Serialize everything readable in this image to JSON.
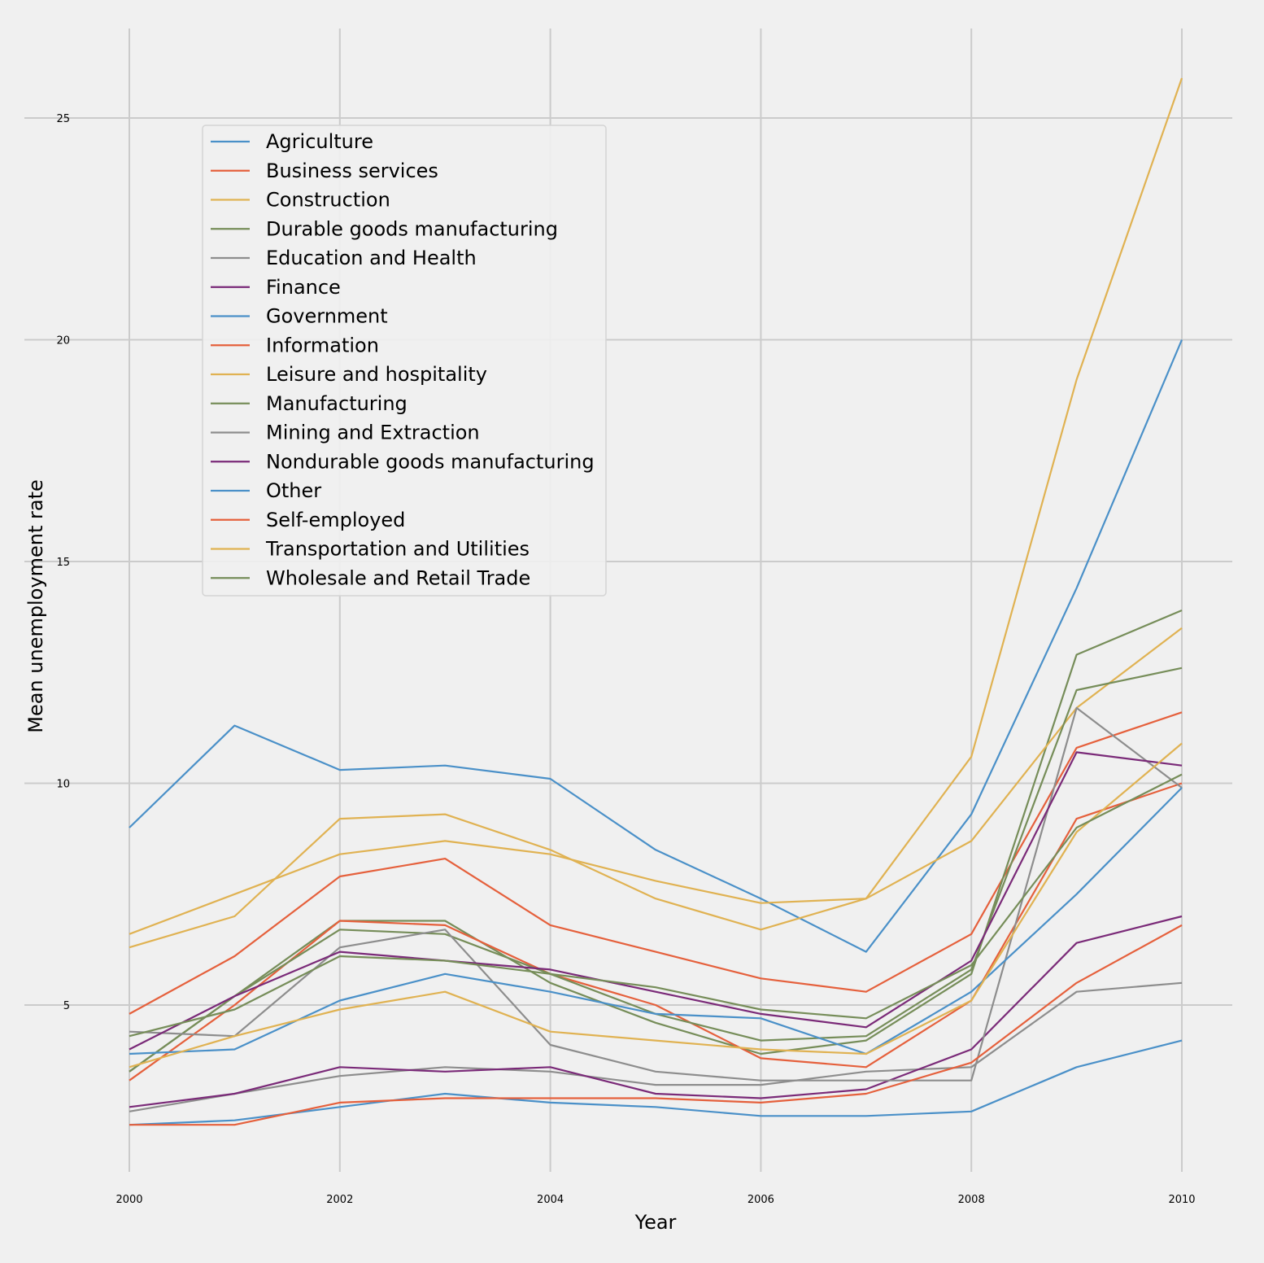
{
  "chart_data": {
    "type": "line",
    "title": "",
    "xlabel": "Year",
    "ylabel": "Mean unemployment rate",
    "x": [
      2000,
      2001,
      2002,
      2003,
      2004,
      2005,
      2006,
      2007,
      2008,
      2009,
      2010
    ],
    "xticks": [
      "2000",
      "2002",
      "2004",
      "2006",
      "2008",
      "2010"
    ],
    "yticks": [
      "5",
      "10",
      "15",
      "20",
      "25"
    ],
    "xlim": [
      1999.0,
      2010.5
    ],
    "ylim": [
      1.5,
      27.0
    ],
    "grid": true,
    "legend_position": "upper-left",
    "series": [
      {
        "name": "Agriculture",
        "color": "#4a90c8",
        "values": [
          9.0,
          11.3,
          10.3,
          10.4,
          10.1,
          8.5,
          7.4,
          6.2,
          9.3,
          14.4,
          20.0
        ]
      },
      {
        "name": "Business services",
        "color": "#e5603c",
        "values": [
          4.8,
          6.1,
          7.9,
          8.3,
          6.8,
          6.2,
          5.6,
          5.3,
          6.6,
          10.8,
          11.6
        ]
      },
      {
        "name": "Construction",
        "color": "#e0b252",
        "values": [
          6.6,
          7.5,
          8.4,
          8.7,
          8.4,
          7.8,
          7.3,
          7.4,
          10.6,
          19.1,
          25.9
        ]
      },
      {
        "name": "Durable goods manufacturing",
        "color": "#768d59",
        "values": [
          3.5,
          5.2,
          6.9,
          6.9,
          5.5,
          4.6,
          3.9,
          4.2,
          5.7,
          12.9,
          13.9
        ]
      },
      {
        "name": "Education and Health",
        "color": "#8d8d8d",
        "values": [
          2.6,
          3.0,
          3.4,
          3.6,
          3.5,
          3.2,
          3.2,
          3.5,
          3.6,
          5.3,
          5.5
        ]
      },
      {
        "name": "Finance",
        "color": "#7a2a78",
        "values": [
          2.7,
          3.0,
          3.6,
          3.5,
          3.6,
          3.0,
          2.9,
          3.1,
          4.0,
          6.4,
          7.0
        ]
      },
      {
        "name": "Government",
        "color": "#4a90c8",
        "values": [
          2.3,
          2.4,
          2.7,
          3.0,
          2.8,
          2.7,
          2.5,
          2.5,
          2.6,
          3.6,
          4.2
        ]
      },
      {
        "name": "Information",
        "color": "#e5603c",
        "values": [
          3.3,
          5.0,
          6.9,
          6.8,
          5.7,
          5.0,
          3.8,
          3.6,
          5.1,
          9.2,
          10.0
        ]
      },
      {
        "name": "Leisure and hospitality",
        "color": "#e0b252",
        "values": [
          6.3,
          7.0,
          9.2,
          9.3,
          8.5,
          7.4,
          6.7,
          7.4,
          8.7,
          11.7,
          13.5
        ]
      },
      {
        "name": "Manufacturing",
        "color": "#768d59",
        "values": [
          3.5,
          5.2,
          6.7,
          6.6,
          5.7,
          4.8,
          4.2,
          4.3,
          5.8,
          12.1,
          12.6
        ]
      },
      {
        "name": "Mining and Extraction",
        "color": "#8d8d8d",
        "values": [
          4.4,
          4.3,
          6.3,
          6.7,
          4.1,
          3.5,
          3.3,
          3.3,
          3.3,
          11.7,
          9.9
        ]
      },
      {
        "name": "Nondurable goods manufacturing",
        "color": "#7a2a78",
        "values": [
          4.0,
          5.2,
          6.2,
          6.0,
          5.8,
          5.3,
          4.8,
          4.5,
          6.0,
          10.7,
          10.4
        ]
      },
      {
        "name": "Other",
        "color": "#4a90c8",
        "values": [
          3.9,
          4.0,
          5.1,
          5.7,
          5.3,
          4.8,
          4.7,
          3.9,
          5.3,
          7.5,
          9.9
        ]
      },
      {
        "name": "Self-employed",
        "color": "#e5603c",
        "values": [
          2.3,
          2.3,
          2.8,
          2.9,
          2.9,
          2.9,
          2.8,
          3.0,
          3.7,
          5.5,
          6.8
        ]
      },
      {
        "name": "Transportation and Utilities",
        "color": "#e0b252",
        "values": [
          3.6,
          4.3,
          4.9,
          5.3,
          4.4,
          4.2,
          4.0,
          3.9,
          5.1,
          8.9,
          10.9
        ]
      },
      {
        "name": "Wholesale and Retail Trade",
        "color": "#768d59",
        "values": [
          4.3,
          4.9,
          6.1,
          6.0,
          5.7,
          5.4,
          4.9,
          4.7,
          5.9,
          9.0,
          10.2
        ]
      }
    ]
  }
}
